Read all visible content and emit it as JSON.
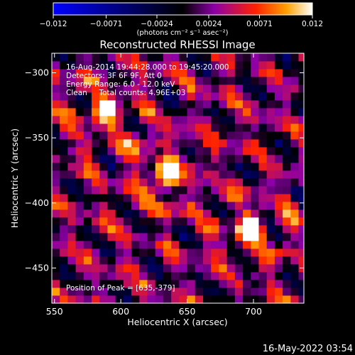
{
  "chart_data": {
    "type": "heatmap",
    "title": "Reconstructed RHESSI Image",
    "xlabel": "Heliocentric X (arcsec)",
    "ylabel": "Heliocentric Y (arcsec)",
    "xlim": [
      548,
      738
    ],
    "ylim": [
      -477,
      -285
    ],
    "x_ticks": [
      550,
      600,
      650,
      700
    ],
    "y_ticks": [
      -300,
      -350,
      -400,
      -450
    ],
    "x_tick_labels": [
      "550",
      "600",
      "650",
      "700"
    ],
    "y_tick_labels": [
      "−300",
      "−350",
      "−400",
      "−450"
    ],
    "colorbar": {
      "min": -0.012,
      "max": 0.012,
      "ticks": [
        -0.012,
        -0.0071,
        -0.0024,
        0.0024,
        0.0071,
        0.012
      ],
      "tick_labels": [
        "−0.012",
        "−0.0071",
        "−0.0024",
        "0.0024",
        "0.0071",
        "0.012"
      ],
      "unit": "(photons cm⁻² s⁻¹ asec⁻²)",
      "colormap": [
        "#0000ff",
        "#000000",
        "#8c00a8",
        "#ff2000",
        "#ffa000",
        "#ffffff"
      ]
    },
    "annotations": [
      "16-Aug-2014 19:44:28.000 to 19:45:20.000",
      "Detectors: 3F 6F 9F, Att 0",
      "Energy Range: 6.0 - 12.0 keV",
      "Clean     Total counts: 4.96E+03"
    ],
    "peak_label": "Position of Peak = [635,-379]",
    "sources": [
      {
        "x": 588,
        "y": -330,
        "peak": 0.011
      },
      {
        "x": 635,
        "y": -379,
        "peak": 0.012
      },
      {
        "x": 698,
        "y": -418,
        "peak": 0.0115
      }
    ],
    "grid": false
  },
  "footer": {
    "date_stamp": "16-May-2022 03:54"
  }
}
